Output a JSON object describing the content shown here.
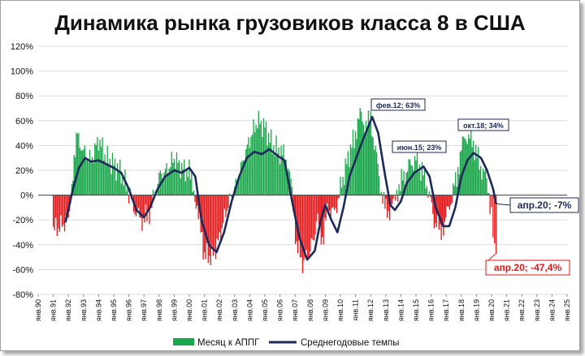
{
  "colors": {
    "positive_bar": "#1aa64a",
    "negative_bar": "#e31a1c",
    "line": "#1c2a5a",
    "grid": "#d9d9d9"
  },
  "chart_data": {
    "type": "bar+line",
    "title": "Динамика рынка грузовиков класса 8 в США",
    "ylim": [
      -80,
      120
    ],
    "yticks": [
      "-80%",
      "-60%",
      "-40%",
      "-20%",
      "0%",
      "20%",
      "40%",
      "60%",
      "80%",
      "100%",
      "120%"
    ],
    "xticks": [
      "янв.90",
      "янв.91",
      "янв.92",
      "янв.93",
      "янв.94",
      "янв.95",
      "янв.96",
      "янв.97",
      "янв.98",
      "янв.99",
      "янв.00",
      "янв.01",
      "янв.02",
      "янв.03",
      "янв.04",
      "янв.05",
      "янв.06",
      "янв.07",
      "янв.08",
      "янв.09",
      "янв.10",
      "янв.11",
      "янв.12",
      "янв.13",
      "янв.14",
      "янв.15",
      "янв.16",
      "янв.17",
      "янв.18",
      "янв.19",
      "янв.20",
      "янв.21",
      "янв.22",
      "янв.23",
      "янв.24",
      "янв.25"
    ],
    "x_start_year": 1990,
    "grid": "horizontal",
    "legend_position": "bottom",
    "series": [
      {
        "name": "Месяц к АППГ",
        "kind": "bar",
        "points": [
          [
            1991.0,
            -28
          ],
          [
            1991.5,
            -25
          ],
          [
            1992.0,
            -20
          ],
          [
            1992.3,
            20
          ],
          [
            1992.6,
            48
          ],
          [
            1993.0,
            35
          ],
          [
            1993.5,
            28
          ],
          [
            1994.0,
            45
          ],
          [
            1994.5,
            30
          ],
          [
            1995.0,
            25
          ],
          [
            1995.5,
            18
          ],
          [
            1996.0,
            2
          ],
          [
            1996.4,
            -12
          ],
          [
            1996.8,
            -20
          ],
          [
            1997.2,
            -18
          ],
          [
            1997.6,
            -5
          ],
          [
            1998.0,
            15
          ],
          [
            1998.5,
            20
          ],
          [
            1999.0,
            30
          ],
          [
            1999.5,
            22
          ],
          [
            2000.0,
            18
          ],
          [
            2000.3,
            5
          ],
          [
            2000.6,
            -15
          ],
          [
            2001.0,
            -48
          ],
          [
            2001.5,
            -50
          ],
          [
            2002.0,
            -35
          ],
          [
            2002.5,
            -10
          ],
          [
            2003.0,
            5
          ],
          [
            2003.5,
            25
          ],
          [
            2004.0,
            45
          ],
          [
            2004.5,
            60
          ],
          [
            2005.0,
            55
          ],
          [
            2005.5,
            40
          ],
          [
            2006.0,
            35
          ],
          [
            2006.4,
            30
          ],
          [
            2006.8,
            5
          ],
          [
            2007.1,
            -40
          ],
          [
            2007.5,
            -55
          ],
          [
            2008.0,
            -45
          ],
          [
            2008.5,
            -20
          ],
          [
            2008.8,
            -35
          ],
          [
            2009.2,
            -10
          ],
          [
            2009.6,
            -15
          ],
          [
            2010.0,
            5
          ],
          [
            2010.5,
            30
          ],
          [
            2011.0,
            50
          ],
          [
            2011.3,
            65
          ],
          [
            2011.7,
            55
          ],
          [
            2012.0,
            60
          ],
          [
            2012.4,
            30
          ],
          [
            2012.8,
            -5
          ],
          [
            2013.1,
            -15
          ],
          [
            2013.5,
            -8
          ],
          [
            2013.8,
            5
          ],
          [
            2014.2,
            15
          ],
          [
            2014.6,
            25
          ],
          [
            2015.0,
            28
          ],
          [
            2015.4,
            20
          ],
          [
            2015.8,
            5
          ],
          [
            2016.2,
            -20
          ],
          [
            2016.6,
            -28
          ],
          [
            2016.9,
            -22
          ],
          [
            2017.3,
            -5
          ],
          [
            2017.7,
            15
          ],
          [
            2018.0,
            40
          ],
          [
            2018.4,
            48
          ],
          [
            2018.8,
            42
          ],
          [
            2019.2,
            25
          ],
          [
            2019.6,
            15
          ],
          [
            2019.9,
            -5
          ],
          [
            2020.1,
            -30
          ],
          [
            2020.3,
            -47.4
          ]
        ]
      },
      {
        "name": "Среднегодовые темпы",
        "kind": "line",
        "points": [
          [
            1991.8,
            -22
          ],
          [
            1992.3,
            5
          ],
          [
            1992.7,
            22
          ],
          [
            1993.1,
            30
          ],
          [
            1993.5,
            27
          ],
          [
            1994.0,
            28
          ],
          [
            1994.5,
            25
          ],
          [
            1995.0,
            22
          ],
          [
            1995.5,
            18
          ],
          [
            1996.0,
            5
          ],
          [
            1996.5,
            -12
          ],
          [
            1997.0,
            -18
          ],
          [
            1997.4,
            -10
          ],
          [
            1997.9,
            5
          ],
          [
            1998.4,
            15
          ],
          [
            1999.0,
            20
          ],
          [
            1999.5,
            18
          ],
          [
            2000.0,
            22
          ],
          [
            2000.4,
            15
          ],
          [
            2000.8,
            -20
          ],
          [
            2001.3,
            -40
          ],
          [
            2001.8,
            -46
          ],
          [
            2002.3,
            -30
          ],
          [
            2002.8,
            -5
          ],
          [
            2003.3,
            15
          ],
          [
            2003.8,
            30
          ],
          [
            2004.3,
            35
          ],
          [
            2004.8,
            33
          ],
          [
            2005.3,
            37
          ],
          [
            2005.8,
            32
          ],
          [
            2006.3,
            28
          ],
          [
            2006.8,
            -5
          ],
          [
            2007.3,
            -35
          ],
          [
            2007.8,
            -52
          ],
          [
            2008.3,
            -45
          ],
          [
            2008.7,
            -20
          ],
          [
            2009.0,
            -8
          ],
          [
            2009.4,
            -20
          ],
          [
            2009.8,
            -30
          ],
          [
            2010.2,
            -10
          ],
          [
            2010.6,
            15
          ],
          [
            2011.1,
            32
          ],
          [
            2011.5,
            45
          ],
          [
            2012.1,
            63
          ],
          [
            2012.5,
            50
          ],
          [
            2012.9,
            20
          ],
          [
            2013.3,
            -8
          ],
          [
            2013.6,
            -12
          ],
          [
            2014.0,
            -5
          ],
          [
            2014.4,
            10
          ],
          [
            2014.9,
            18
          ],
          [
            2015.5,
            23
          ],
          [
            2015.9,
            15
          ],
          [
            2016.3,
            -10
          ],
          [
            2016.8,
            -25
          ],
          [
            2017.2,
            -25
          ],
          [
            2017.6,
            -10
          ],
          [
            2018.0,
            15
          ],
          [
            2018.4,
            28
          ],
          [
            2018.8,
            34
          ],
          [
            2019.3,
            30
          ],
          [
            2019.7,
            20
          ],
          [
            2020.1,
            5
          ],
          [
            2020.3,
            -7
          ]
        ]
      }
    ],
    "annotations": [
      {
        "text": "фев.12; 63%",
        "x": 2012.08,
        "y": 63
      },
      {
        "text": "июн.15; 23%",
        "x": 2015.42,
        "y": 23
      },
      {
        "text": "окт.18; 34%",
        "x": 2018.75,
        "y": 34
      },
      {
        "text": "апр.20; -7%",
        "x": 2020.25,
        "y": -7
      },
      {
        "text": "апр.20; -47,4%",
        "x": 2020.25,
        "y": -47.4
      }
    ]
  }
}
